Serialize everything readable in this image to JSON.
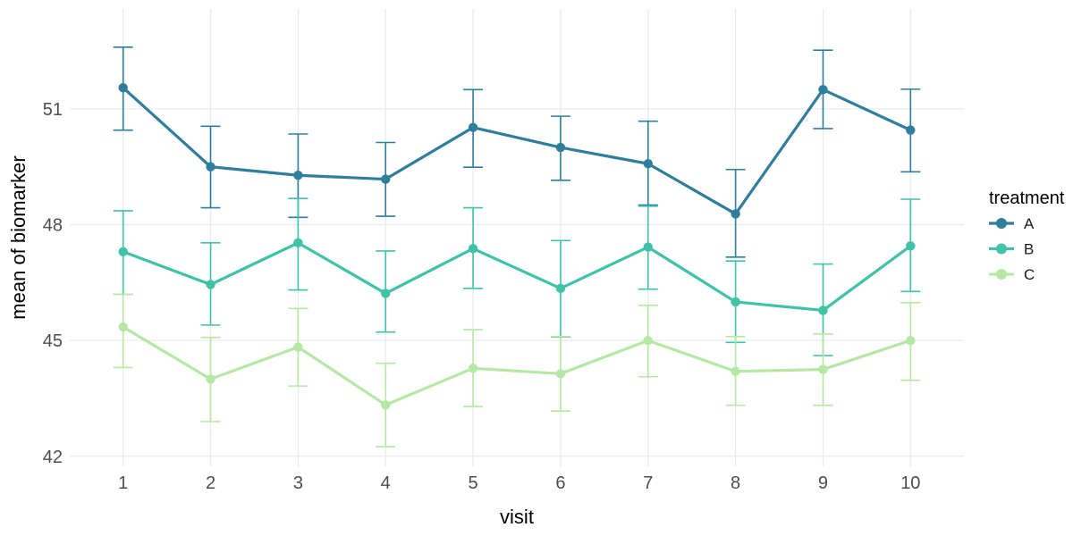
{
  "chart_data": {
    "type": "line",
    "title": "",
    "xlabel": "visit",
    "ylabel": "mean of biomarker",
    "legend_title": "treatment",
    "legend_position": "right",
    "grid": "major-only",
    "marker": "circle",
    "error_bars": true,
    "x": [
      1,
      2,
      3,
      4,
      5,
      6,
      7,
      8,
      9,
      10
    ],
    "x_tick_labels": [
      "1",
      "2",
      "3",
      "4",
      "5",
      "6",
      "7",
      "8",
      "9",
      "10"
    ],
    "y_ticks": [
      42,
      45,
      48,
      51
    ],
    "y_tick_labels": [
      "42",
      "45",
      "48",
      "51"
    ],
    "xlim": [
      0.39,
      10.61
    ],
    "ylim": [
      41.74,
      53.59
    ],
    "series": [
      {
        "name": "A",
        "color": "#2e7e9c",
        "values": [
          51.55,
          49.5,
          49.28,
          49.18,
          50.52,
          50.0,
          49.58,
          48.28,
          51.5,
          50.45
        ],
        "lower": [
          50.45,
          48.44,
          48.19,
          48.22,
          49.49,
          49.15,
          48.51,
          47.16,
          50.49,
          49.37
        ],
        "upper": [
          52.6,
          50.55,
          50.35,
          50.13,
          51.5,
          50.81,
          50.68,
          49.43,
          52.52,
          51.51
        ]
      },
      {
        "name": "B",
        "color": "#3fc2a7",
        "values": [
          47.3,
          46.45,
          47.53,
          46.22,
          47.38,
          46.35,
          47.42,
          46.0,
          45.78,
          47.45
        ],
        "lower": [
          46.2,
          45.4,
          46.31,
          45.22,
          46.35,
          45.09,
          46.33,
          44.95,
          44.61,
          46.27
        ],
        "upper": [
          48.36,
          47.53,
          48.68,
          47.32,
          48.44,
          47.59,
          48.48,
          47.06,
          46.98,
          48.66
        ]
      },
      {
        "name": "C",
        "color": "#b4e8a4",
        "values": [
          45.35,
          44.0,
          44.83,
          43.33,
          44.28,
          44.14,
          45.0,
          44.2,
          44.25,
          45.0
        ],
        "lower": [
          44.3,
          42.9,
          43.82,
          42.25,
          43.29,
          43.17,
          44.06,
          43.32,
          43.32,
          43.97
        ],
        "upper": [
          46.2,
          45.08,
          45.83,
          44.41,
          45.28,
          45.1,
          45.91,
          45.1,
          45.17,
          45.98
        ]
      }
    ],
    "colors": {
      "grid": "#ebebeb",
      "axis_text": "#4d4d4d",
      "axis_title": "#000000",
      "legend_text": "#1a1a1a"
    }
  }
}
